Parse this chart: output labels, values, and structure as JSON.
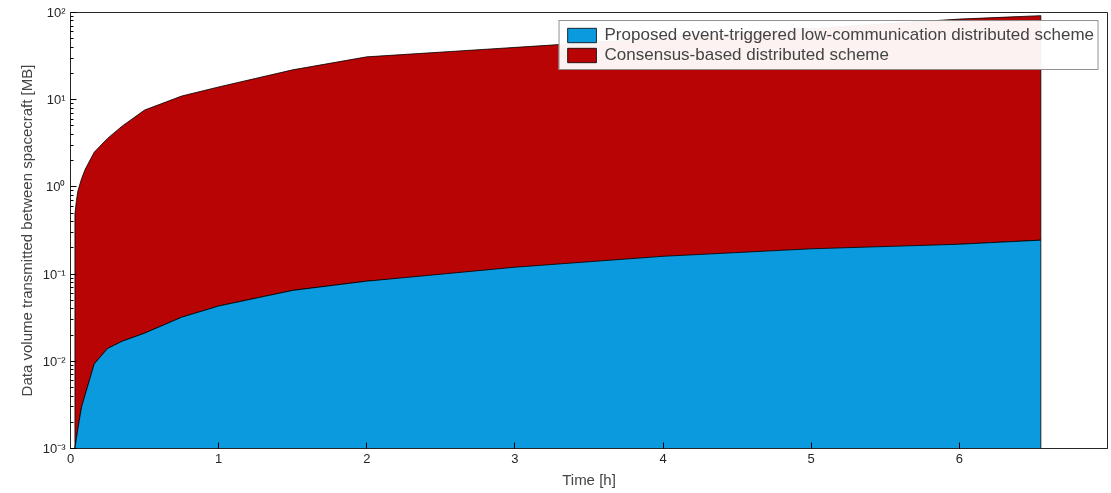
{
  "chart_data": {
    "type": "area",
    "xlabel": "Time [h]",
    "ylabel": "Data volume transmitted between spacecraft [MB]",
    "log": "y",
    "legend": "top right",
    "grid": false,
    "stacked": false,
    "xlim": [
      0,
      7
    ],
    "xticks": [
      0,
      1,
      2,
      3,
      4,
      5,
      6
    ],
    "ylim": [
      0.001,
      100
    ],
    "yticks": [
      {
        "value": 0.001,
        "label": "10⁻³"
      },
      {
        "value": 0.01,
        "label": "10⁻²"
      },
      {
        "value": 0.1,
        "label": "10⁻¹"
      },
      {
        "value": 1,
        "label": "10⁰"
      },
      {
        "value": 10,
        "label": "10¹"
      },
      {
        "value": 100,
        "label": "10²"
      }
    ],
    "x": [
      0.03,
      0.04,
      0.05,
      0.075,
      0.1,
      0.16,
      0.25,
      0.35,
      0.5,
      0.75,
      1,
      1.5,
      2,
      3,
      4,
      5,
      6,
      6.55
    ],
    "series": [
      {
        "name": "Consensus-based distributed scheme",
        "color": "#b80404",
        "values": [
          0.49,
          0.7,
          0.9,
          1.25,
          1.6,
          2.5,
          3.6,
          5,
          7.6,
          11,
          14,
          22,
          31,
          null,
          null,
          null,
          84,
          92
        ]
      },
      {
        "name": "Proposed event-triggered low-communication distributed scheme",
        "color": "#0b9ade",
        "values": [
          0.001,
          0.0013,
          0.0017,
          0.003,
          0.0042,
          0.0093,
          0.014,
          0.017,
          0.021,
          0.032,
          0.043,
          0.065,
          0.083,
          0.12,
          0.16,
          0.195,
          0.22,
          0.245
        ]
      }
    ]
  }
}
